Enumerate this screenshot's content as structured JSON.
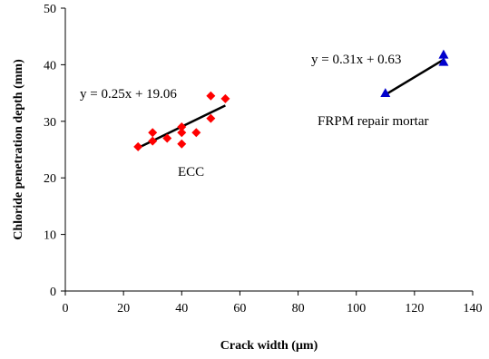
{
  "chart_data": {
    "type": "scatter",
    "xlabel": "Crack width (μm)",
    "ylabel": "Chloride penetration depth (mm)",
    "xlim": [
      0,
      140
    ],
    "ylim": [
      0,
      50
    ],
    "xticks": [
      "0",
      "20",
      "40",
      "60",
      "80",
      "100",
      "120",
      "140"
    ],
    "yticks": [
      "0",
      "10",
      "20",
      "30",
      "40",
      "50"
    ],
    "grid": false,
    "series": [
      {
        "name": "ECC",
        "marker": "diamond",
        "color": "#ff0000",
        "x": [
          25,
          30,
          30,
          35,
          40,
          40,
          40,
          45,
          50,
          50,
          55
        ],
        "y": [
          25.5,
          26.5,
          28,
          27,
          26,
          28,
          29,
          28,
          30.5,
          34.5,
          34
        ],
        "trendline": {
          "x": [
            25,
            55
          ],
          "y": [
            25.3,
            32.8
          ],
          "equation": "y = 0.25x + 19.06"
        }
      },
      {
        "name": "FRPM repair mortar",
        "marker": "triangle",
        "color": "#0000cc",
        "x": [
          110,
          130,
          130
        ],
        "y": [
          35,
          40.5,
          41.8
        ],
        "trendline": {
          "x": [
            110,
            130
          ],
          "y": [
            34.7,
            40.9
          ],
          "equation": "y = 0.31x + 0.63"
        }
      }
    ]
  }
}
